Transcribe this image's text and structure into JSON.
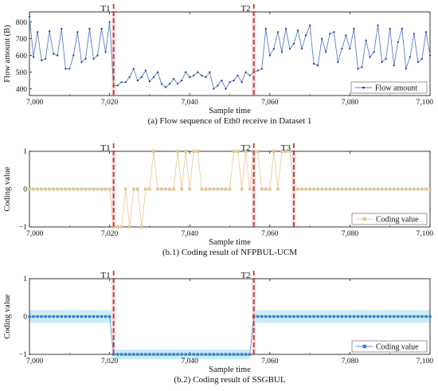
{
  "colors": {
    "flow_line": "#5b7fc6",
    "flow_marker": "#1f3b8c",
    "nfp_line": "#e8c79a",
    "nfp_marker": "#dcc79a",
    "ssg_line": "#4e8fd4",
    "ssg_marker": "#3d7fd0",
    "ssg_band": "#c9edf6",
    "event_line": "#c0392b",
    "event_band": "#f6d2d9"
  },
  "chart_data": [
    {
      "type": "line",
      "caption": "(a) Flow sequence of Eth0 receive in Dataset 1",
      "xlabel": "Sample time",
      "ylabel": "Flow amount (B)",
      "xlim": [
        7000,
        7100
      ],
      "ylim": [
        360,
        860
      ],
      "xticks": [
        7000,
        7020,
        7040,
        7060,
        7080,
        7100
      ],
      "xtick_labels": [
        "7,000",
        "7,020",
        "7,040",
        "7,060",
        "7,080",
        "7,100"
      ],
      "yticks": [
        400,
        500,
        600,
        700,
        800
      ],
      "ytick_labels": [
        "400",
        "500",
        "600",
        "700",
        "800"
      ],
      "markers": [
        {
          "label": "T1",
          "x": 7021
        },
        {
          "label": "T2",
          "x": 7056
        }
      ],
      "legend": "bottom-right",
      "series": [
        {
          "name": "Flow amount",
          "x": [
            7000,
            7001,
            7002,
            7003,
            7004,
            7005,
            7006,
            7007,
            7008,
            7009,
            7010,
            7011,
            7012,
            7013,
            7014,
            7015,
            7016,
            7017,
            7018,
            7019,
            7020,
            7021,
            7022,
            7023,
            7024,
            7025,
            7026,
            7027,
            7028,
            7029,
            7030,
            7031,
            7032,
            7033,
            7034,
            7035,
            7036,
            7037,
            7038,
            7039,
            7040,
            7041,
            7042,
            7043,
            7044,
            7045,
            7046,
            7047,
            7048,
            7049,
            7050,
            7051,
            7052,
            7053,
            7054,
            7055,
            7056,
            7057,
            7058,
            7059,
            7060,
            7061,
            7062,
            7063,
            7064,
            7065,
            7066,
            7067,
            7068,
            7069,
            7070,
            7071,
            7072,
            7073,
            7074,
            7075,
            7076,
            7077,
            7078,
            7079,
            7080,
            7081,
            7082,
            7083,
            7084,
            7085,
            7086,
            7087,
            7088,
            7089,
            7090,
            7091,
            7092,
            7093,
            7094,
            7095,
            7096,
            7097,
            7098,
            7099,
            7100
          ],
          "values": [
            830,
            590,
            740,
            570,
            580,
            745,
            610,
            600,
            760,
            520,
            520,
            600,
            740,
            560,
            580,
            760,
            580,
            600,
            760,
            620,
            800,
            420,
            420,
            440,
            440,
            470,
            520,
            450,
            470,
            510,
            445,
            470,
            500,
            430,
            410,
            430,
            460,
            430,
            450,
            500,
            470,
            480,
            500,
            480,
            470,
            500,
            400,
            420,
            450,
            400,
            440,
            450,
            480,
            440,
            500,
            480,
            500,
            510,
            520,
            760,
            600,
            640,
            740,
            620,
            760,
            640,
            670,
            750,
            640,
            720,
            780,
            550,
            540,
            700,
            620,
            730,
            740,
            560,
            640,
            720,
            640,
            760,
            520,
            530,
            690,
            590,
            620,
            780,
            560,
            580,
            760,
            540,
            680,
            760,
            520,
            590,
            730,
            560,
            580,
            740,
            600
          ]
        }
      ]
    },
    {
      "type": "line",
      "caption": "(b.1) Coding result of NFPBUL-UCM",
      "xlabel": "Sample time",
      "ylabel": "Coding value",
      "xlim": [
        7000,
        7100
      ],
      "ylim": [
        -1,
        1
      ],
      "xticks": [
        7000,
        7020,
        7040,
        7060,
        7080,
        7100
      ],
      "xtick_labels": [
        "7,000",
        "7,020",
        "7,040",
        "7,060",
        "7,080",
        "7,100"
      ],
      "yticks": [
        -1,
        0,
        1
      ],
      "ytick_labels": [
        "−1",
        "0",
        "1"
      ],
      "markers": [
        {
          "label": "T1",
          "x": 7021
        },
        {
          "label": "T2",
          "x": 7056
        },
        {
          "label": "T3",
          "x": 7066
        }
      ],
      "legend": "bottom-right",
      "series": [
        {
          "name": "Coding value",
          "x": [
            7000,
            7001,
            7002,
            7003,
            7004,
            7005,
            7006,
            7007,
            7008,
            7009,
            7010,
            7011,
            7012,
            7013,
            7014,
            7015,
            7016,
            7017,
            7018,
            7019,
            7020,
            7021,
            7022,
            7023,
            7024,
            7025,
            7026,
            7027,
            7028,
            7029,
            7030,
            7031,
            7032,
            7033,
            7034,
            7035,
            7036,
            7037,
            7038,
            7039,
            7040,
            7041,
            7042,
            7043,
            7044,
            7045,
            7046,
            7047,
            7048,
            7049,
            7050,
            7051,
            7052,
            7053,
            7054,
            7055,
            7056,
            7057,
            7058,
            7059,
            7060,
            7061,
            7062,
            7063,
            7064,
            7065,
            7066,
            7067,
            7068,
            7069,
            7070,
            7071,
            7072,
            7073,
            7074,
            7075,
            7076,
            7077,
            7078,
            7079,
            7080,
            7081,
            7082,
            7083,
            7084,
            7085,
            7086,
            7087,
            7088,
            7089,
            7090,
            7091,
            7092,
            7093,
            7094,
            7095,
            7096,
            7097,
            7098,
            7099,
            7100
          ],
          "values": [
            0,
            0,
            0,
            0,
            0,
            0,
            0,
            0,
            0,
            0,
            0,
            0,
            0,
            0,
            0,
            0,
            0,
            0,
            0,
            0,
            0,
            -1,
            -1,
            -1,
            0,
            -1,
            0,
            0,
            -1,
            0,
            0,
            1,
            0,
            0,
            0,
            0,
            0,
            1,
            0,
            1,
            0,
            1,
            1,
            0,
            0,
            0,
            0,
            0,
            0,
            0,
            0,
            1,
            1,
            0,
            1,
            0,
            1,
            1,
            0,
            0,
            0,
            1,
            0,
            1,
            1,
            1,
            0,
            0,
            0,
            0,
            0,
            0,
            0,
            0,
            0,
            0,
            0,
            0,
            0,
            0,
            0,
            0,
            0,
            0,
            0,
            0,
            0,
            0,
            0,
            0,
            0,
            0,
            0,
            0,
            0,
            0,
            0,
            0,
            0,
            0,
            0
          ]
        }
      ]
    },
    {
      "type": "line",
      "caption": "(b.2) Coding result of SSGBUL",
      "xlabel": "Sample time",
      "ylabel": "Coding value",
      "xlim": [
        7000,
        7100
      ],
      "ylim": [
        -1,
        1
      ],
      "xticks": [
        7000,
        7020,
        7040,
        7060,
        7080,
        7100
      ],
      "xtick_labels": [
        "7,000",
        "7,020",
        "7,040",
        "7,060",
        "7,080",
        "7,100"
      ],
      "yticks": [
        -1,
        0,
        1
      ],
      "ytick_labels": [
        "−1",
        "0",
        "1"
      ],
      "markers": [
        {
          "label": "T1",
          "x": 7021
        },
        {
          "label": "T2",
          "x": 7056
        }
      ],
      "legend": "bottom-right",
      "series": [
        {
          "name": "Coding value",
          "x": [
            7000,
            7001,
            7002,
            7003,
            7004,
            7005,
            7006,
            7007,
            7008,
            7009,
            7010,
            7011,
            7012,
            7013,
            7014,
            7015,
            7016,
            7017,
            7018,
            7019,
            7020,
            7021,
            7022,
            7023,
            7024,
            7025,
            7026,
            7027,
            7028,
            7029,
            7030,
            7031,
            7032,
            7033,
            7034,
            7035,
            7036,
            7037,
            7038,
            7039,
            7040,
            7041,
            7042,
            7043,
            7044,
            7045,
            7046,
            7047,
            7048,
            7049,
            7050,
            7051,
            7052,
            7053,
            7054,
            7055,
            7056,
            7057,
            7058,
            7059,
            7060,
            7061,
            7062,
            7063,
            7064,
            7065,
            7066,
            7067,
            7068,
            7069,
            7070,
            7071,
            7072,
            7073,
            7074,
            7075,
            7076,
            7077,
            7078,
            7079,
            7080,
            7081,
            7082,
            7083,
            7084,
            7085,
            7086,
            7087,
            7088,
            7089,
            7090,
            7091,
            7092,
            7093,
            7094,
            7095,
            7096,
            7097,
            7098,
            7099,
            7100
          ],
          "values": [
            0,
            0,
            0,
            0,
            0,
            0,
            0,
            0,
            0,
            0,
            0,
            0,
            0,
            0,
            0,
            0,
            0,
            0,
            0,
            0,
            0,
            -1,
            -1,
            -1,
            -1,
            -1,
            -1,
            -1,
            -1,
            -1,
            -1,
            -1,
            -1,
            -1,
            -1,
            -1,
            -1,
            -1,
            -1,
            -1,
            -1,
            -1,
            -1,
            -1,
            -1,
            -1,
            -1,
            -1,
            -1,
            -1,
            -1,
            -1,
            -1,
            -1,
            -1,
            -1,
            0,
            0,
            0,
            0,
            0,
            0,
            0,
            0,
            0,
            0,
            0,
            0,
            0,
            0,
            0,
            0,
            0,
            0,
            0,
            0,
            0,
            0,
            0,
            0,
            0,
            0,
            0,
            0,
            0,
            0,
            0,
            0,
            0,
            0,
            0,
            0,
            0,
            0,
            0,
            0,
            0,
            0,
            0,
            0,
            0
          ]
        }
      ]
    }
  ]
}
